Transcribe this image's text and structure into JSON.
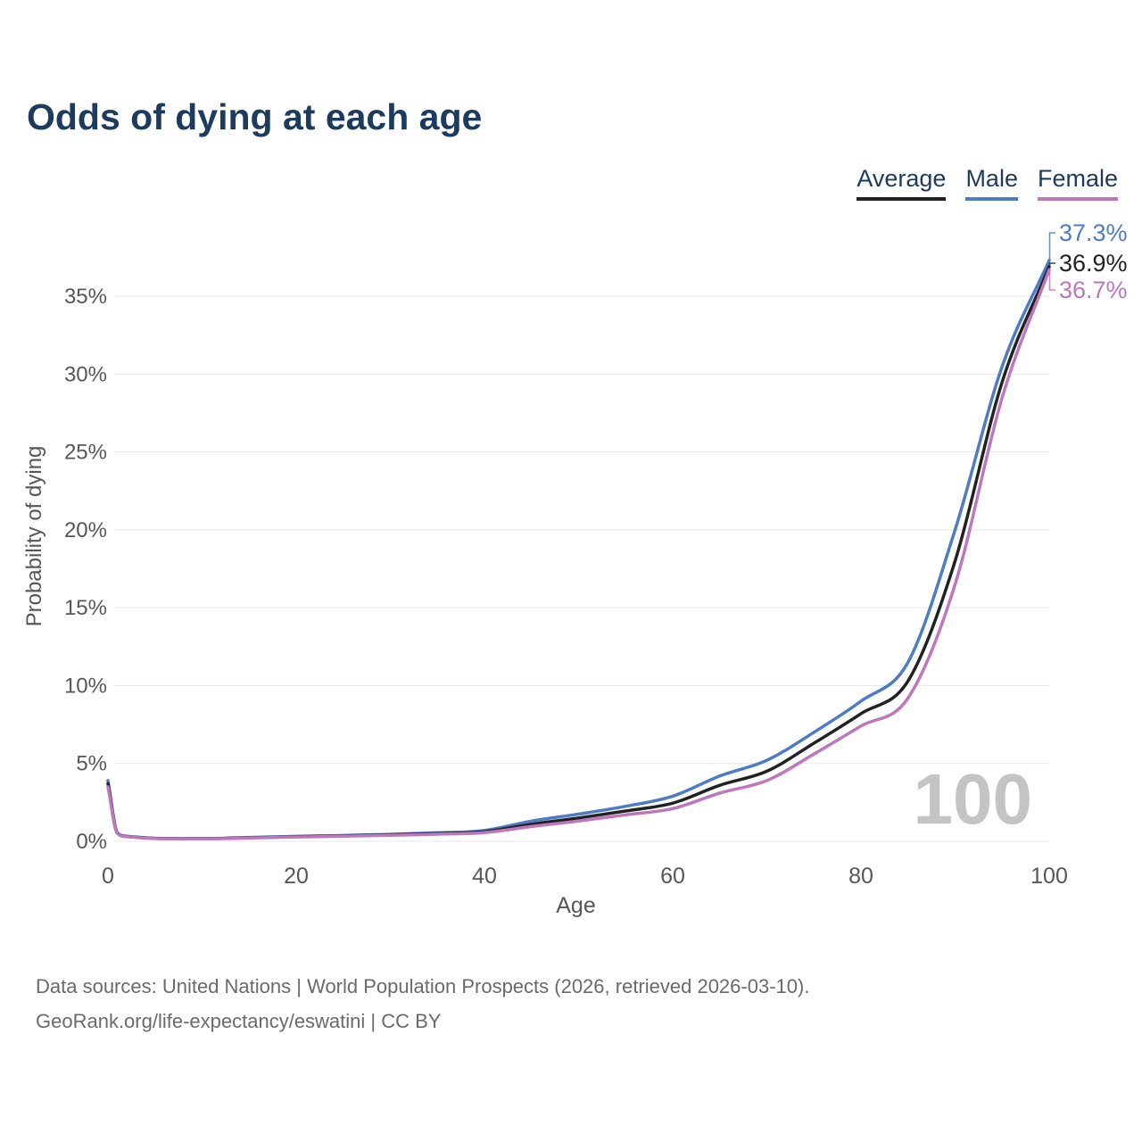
{
  "title": "Odds of dying at each age",
  "legend": {
    "items": [
      {
        "label": "Average",
        "color": "#222222"
      },
      {
        "label": "Male",
        "color": "#4d7cc4"
      },
      {
        "label": "Female",
        "color": "#bd77bd"
      }
    ]
  },
  "chart_data": {
    "type": "line",
    "title": "Odds of dying at each age",
    "xlabel": "Age",
    "ylabel": "Probability of dying",
    "xlim": [
      0,
      100
    ],
    "ylim": [
      0,
      37.5
    ],
    "grid": "horizontal",
    "legend_position": "top-right",
    "xticks": [
      0,
      20,
      40,
      60,
      80,
      100
    ],
    "yticks": [
      0,
      5,
      10,
      15,
      20,
      25,
      30,
      35
    ],
    "ytick_labels": [
      "0%",
      "5%",
      "10%",
      "15%",
      "20%",
      "25%",
      "30%",
      "35%"
    ],
    "x": [
      0,
      1,
      2,
      5,
      10,
      15,
      20,
      25,
      30,
      35,
      40,
      45,
      50,
      55,
      60,
      65,
      70,
      75,
      80,
      85,
      90,
      95,
      100
    ],
    "series": [
      {
        "name": "Average",
        "color": "#222222",
        "values": [
          3.7,
          0.52,
          0.31,
          0.19,
          0.17,
          0.23,
          0.3,
          0.35,
          0.42,
          0.5,
          0.62,
          1.1,
          1.5,
          1.95,
          2.45,
          3.6,
          4.5,
          6.3,
          8.2,
          10.3,
          18.0,
          29.5,
          36.9
        ]
      },
      {
        "name": "Male",
        "color": "#4d7cc4",
        "values": [
          3.9,
          0.55,
          0.33,
          0.2,
          0.18,
          0.25,
          0.32,
          0.38,
          0.45,
          0.55,
          0.7,
          1.3,
          1.75,
          2.25,
          2.9,
          4.2,
          5.2,
          7.0,
          9.0,
          11.5,
          20.0,
          30.5,
          37.3
        ]
      },
      {
        "name": "Female",
        "color": "#bd77bd",
        "values": [
          3.5,
          0.5,
          0.3,
          0.18,
          0.16,
          0.21,
          0.28,
          0.33,
          0.39,
          0.46,
          0.56,
          0.95,
          1.3,
          1.7,
          2.1,
          3.1,
          3.9,
          5.6,
          7.4,
          9.2,
          16.5,
          28.5,
          36.7
        ]
      }
    ],
    "end_labels": [
      {
        "series": "Male",
        "text": "37.3%"
      },
      {
        "series": "Average",
        "text": "36.9%"
      },
      {
        "series": "Female",
        "text": "36.7%"
      }
    ],
    "watermark": "100"
  },
  "footer": {
    "line1": "Data sources: United Nations | World Population Prospects (2026, retrieved 2026-03-10).",
    "line2": "GeoRank.org/life-expectancy/eswatini | CC BY"
  }
}
